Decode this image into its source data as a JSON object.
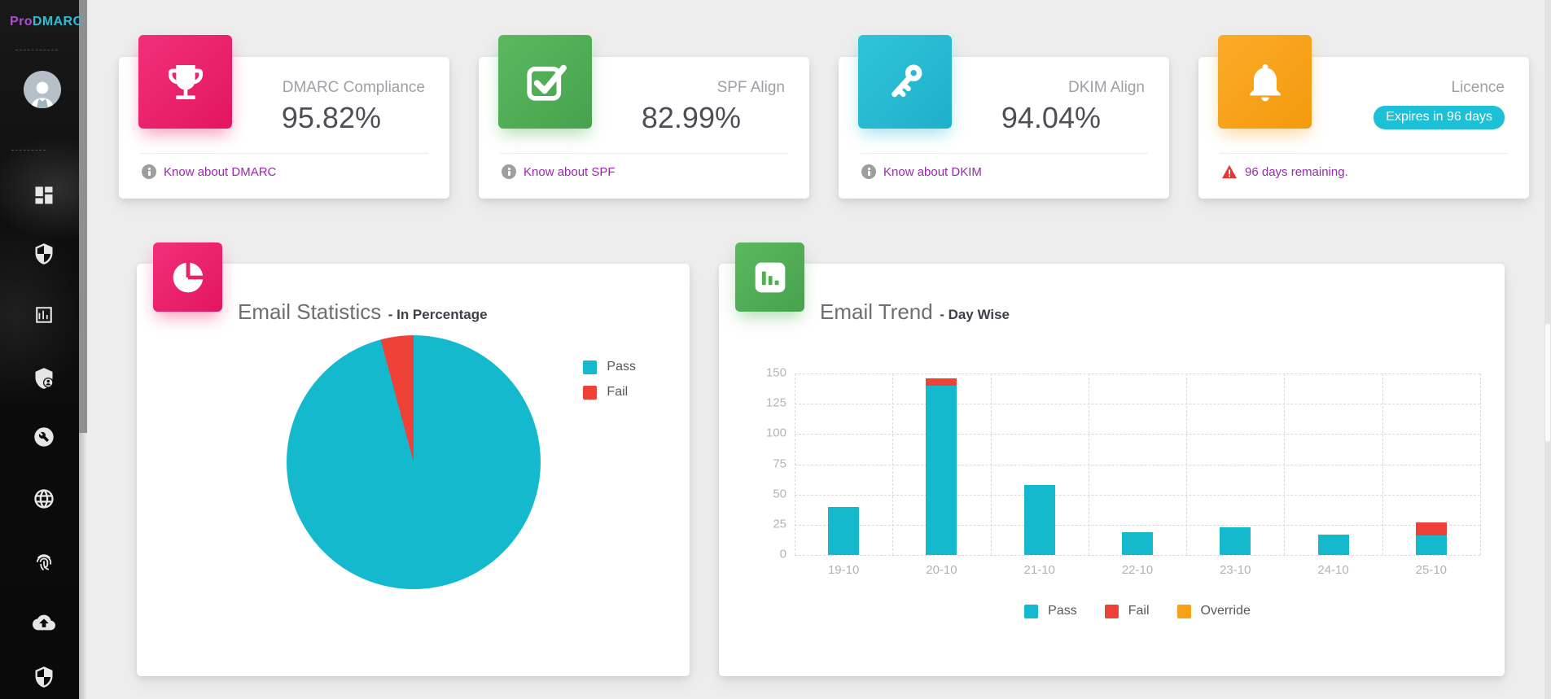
{
  "brand": {
    "pro": "Pro",
    "dmarc": "DMARC"
  },
  "sidebar": {
    "items": [
      {
        "name": "dashboard"
      },
      {
        "name": "security"
      },
      {
        "name": "reports"
      },
      {
        "name": "user-admin"
      },
      {
        "name": "tools"
      },
      {
        "name": "domains"
      },
      {
        "name": "identity"
      },
      {
        "name": "backup-upload"
      },
      {
        "name": "protection"
      }
    ]
  },
  "stat_cards": [
    {
      "label": "DMARC Compliance",
      "value": "95.82%",
      "footer": "Know about DMARC"
    },
    {
      "label": "SPF Align",
      "value": "82.99%",
      "footer": "Know about SPF"
    },
    {
      "label": "DKIM Align",
      "value": "94.04%",
      "footer": "Know about DKIM"
    },
    {
      "label": "Licence",
      "badge": "Expires in 96 days",
      "footer": "96 days remaining."
    }
  ],
  "colors": {
    "pass": "#14b9ce",
    "fail": "#ee4238",
    "override": "#f7a118",
    "accent_pink": "#e91e63",
    "accent_green": "#4caf50",
    "accent_cyan": "#26bcd4",
    "accent_orange": "#f9a21b",
    "link_purple": "#9c27b0"
  },
  "chart_data": [
    {
      "type": "pie",
      "title": "Email Statistics",
      "subtitle": "- In Percentage",
      "labels": [
        "Pass",
        "Fail"
      ],
      "values": [
        95.82,
        4.18
      ],
      "colors": [
        "#14b9ce",
        "#ee4238"
      ],
      "legend_position": "right"
    },
    {
      "type": "bar",
      "title": "Email Trend",
      "subtitle": "- Day Wise",
      "stacked": true,
      "categories": [
        "19-10",
        "20-10",
        "21-10",
        "22-10",
        "23-10",
        "24-10",
        "25-10"
      ],
      "series": [
        {
          "name": "Pass",
          "color": "#14b9ce",
          "values": [
            40,
            140,
            58,
            19,
            23,
            17,
            16
          ]
        },
        {
          "name": "Fail",
          "color": "#ee4238",
          "values": [
            0,
            6,
            0,
            0,
            0,
            0,
            11
          ]
        },
        {
          "name": "Override",
          "color": "#f7a118",
          "values": [
            0,
            0,
            0,
            0,
            0,
            0,
            0
          ]
        }
      ],
      "ylim": [
        0,
        150
      ],
      "yticks": [
        0,
        25,
        50,
        75,
        100,
        125,
        150
      ],
      "grid": "dashed",
      "legend_position": "bottom"
    }
  ]
}
